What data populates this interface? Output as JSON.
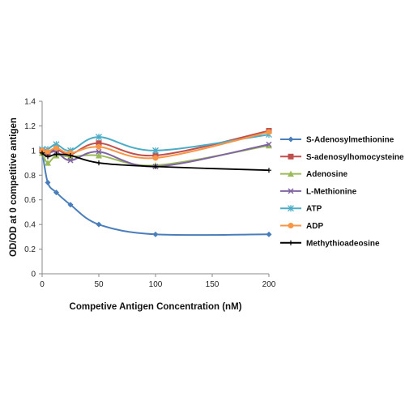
{
  "chart_data": {
    "type": "line",
    "title": "",
    "xlabel": "Competive Antigen Concentration (nM)",
    "ylabel": "OD/OD at 0 competitive antigen",
    "xlim": [
      0,
      200
    ],
    "ylim": [
      0,
      1.4
    ],
    "x_ticks": [
      "0",
      "50",
      "100",
      "150",
      "200"
    ],
    "y_ticks": [
      "0",
      "0.2",
      "0.4",
      "0.6",
      "0.8",
      "1",
      "1.2",
      "1.4"
    ],
    "grid": false,
    "legend_position": "right",
    "x": [
      0,
      5,
      12.5,
      25,
      50,
      100,
      200
    ],
    "series": [
      {
        "name": "S-Adenosylmethionine",
        "color": "#4a7ebb",
        "marker": "diamond",
        "values": [
          1.0,
          0.74,
          0.66,
          0.56,
          0.4,
          0.32,
          0.32
        ]
      },
      {
        "name": "S-adenosylhomocysteine",
        "color": "#c0504d",
        "marker": "square",
        "values": [
          1.0,
          0.98,
          1.01,
          0.97,
          1.06,
          0.96,
          1.16
        ]
      },
      {
        "name": "Adenosine",
        "color": "#9bbb59",
        "marker": "triangle",
        "values": [
          0.98,
          0.9,
          0.96,
          0.95,
          0.96,
          0.88,
          1.04
        ]
      },
      {
        "name": "L-Methionine",
        "color": "#8064a2",
        "marker": "x",
        "values": [
          1.0,
          0.98,
          0.99,
          0.92,
          0.99,
          0.87,
          1.05
        ]
      },
      {
        "name": "ATP",
        "color": "#4bacc6",
        "marker": "star",
        "values": [
          1.01,
          1.01,
          1.05,
          1.0,
          1.11,
          1.0,
          1.13
        ]
      },
      {
        "name": "ADP",
        "color": "#f79646",
        "marker": "circle",
        "values": [
          1.0,
          0.99,
          1.02,
          0.98,
          1.03,
          0.94,
          1.15
        ]
      },
      {
        "name": "Methythioadeosine",
        "color": "#000000",
        "marker": "plus",
        "values": [
          0.98,
          0.95,
          0.97,
          0.96,
          0.9,
          0.87,
          0.84
        ]
      }
    ]
  }
}
